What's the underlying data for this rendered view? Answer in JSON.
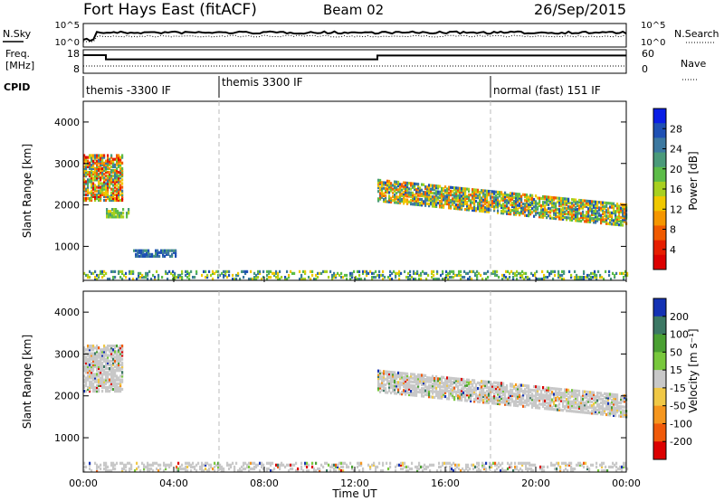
{
  "header": {
    "station": "Fort Hays East (fitACF)",
    "beam": "Beam 02",
    "date": "26/Sep/2015"
  },
  "summary": {
    "nsky_label": "N.Sky",
    "nsearch_label": "N.Search",
    "freq_label_1": "Freq.",
    "freq_label_2": "[MHz]",
    "nave_label": "Nave",
    "cpid_label": "CPID",
    "nsky_ticks": [
      "10^5",
      "10^0"
    ],
    "nsearch_ticks": [
      "10^5",
      "10^0"
    ],
    "freq_ticks": [
      "18",
      "8"
    ],
    "nave_ticks": [
      "60",
      "0"
    ],
    "cpid_segments": [
      {
        "start_h": 0,
        "end_h": 6,
        "label": "themis -3300 IF"
      },
      {
        "start_h": 6,
        "end_h": 18,
        "label": "themis 3300 IF"
      },
      {
        "start_h": 18,
        "end_h": 24,
        "label": "normal (fast) 151 IF"
      }
    ],
    "freq_steps": [
      {
        "start_h": 0,
        "end_h": 1,
        "mhz": 16.5
      },
      {
        "start_h": 1,
        "end_h": 13,
        "mhz": 14.2
      },
      {
        "start_h": 13,
        "end_h": 24,
        "mhz": 16.3
      }
    ]
  },
  "chart_data": [
    {
      "type": "heatmap",
      "quantity": "power",
      "xlabel": "",
      "ylabel": "Slant Range [km]",
      "xlim": [
        0,
        24
      ],
      "ylim": [
        180,
        4500
      ],
      "yticks": [
        "1000",
        "2000",
        "3000",
        "4000"
      ],
      "colorbar": {
        "label": "Power [dB]",
        "ticks": [
          "4",
          "8",
          "12",
          "16",
          "20",
          "24",
          "28"
        ],
        "colors": [
          "#0a1ee6",
          "#1e50b4",
          "#3c78a0",
          "#4a9a7a",
          "#5cbc48",
          "#a8d020",
          "#f0c800",
          "#f59600",
          "#f05a00",
          "#e61e00",
          "#dc0000"
        ]
      },
      "features": [
        {
          "name": "early patch",
          "t": [
            0.0,
            1.7
          ],
          "range_km": [
            2100,
            3200
          ],
          "power_db": [
            6,
            30
          ]
        },
        {
          "name": "early band",
          "t": [
            1.0,
            2.0
          ],
          "range_km": [
            1700,
            1900
          ],
          "power_db": [
            10,
            18
          ]
        },
        {
          "name": "0400 patch",
          "t": [
            2.2,
            4.1
          ],
          "range_km": [
            750,
            900
          ],
          "power_db": [
            4,
            10
          ]
        },
        {
          "name": "main band post 13UT",
          "t": [
            13.0,
            24.0
          ],
          "range_km": [
            1600,
            2600
          ],
          "power_db": [
            4,
            26
          ]
        },
        {
          "name": "ground scatter",
          "t": [
            0.0,
            24.0
          ],
          "range_km": [
            200,
            400
          ],
          "power_db": [
            4,
            20
          ]
        }
      ]
    },
    {
      "type": "heatmap",
      "quantity": "velocity",
      "xlabel": "Time UT",
      "ylabel": "Slant Range [km]",
      "xlim": [
        0,
        24
      ],
      "ylim": [
        180,
        4500
      ],
      "xticks": [
        "00:00",
        "04:00",
        "08:00",
        "12:00",
        "16:00",
        "20:00",
        "00:00"
      ],
      "yticks": [
        "1000",
        "2000",
        "3000",
        "4000"
      ],
      "colorbar": {
        "label": "Velocity [m s⁻¹]",
        "ticks": [
          "200",
          "100",
          "50",
          "15",
          "-15",
          "-50",
          "-100",
          "-200"
        ],
        "colors": [
          "#1432b4",
          "#3c7864",
          "#4aa032",
          "#78c83c",
          "#c8c8c8",
          "#f0c846",
          "#f5961e",
          "#f05a0a",
          "#dc0000"
        ]
      },
      "features": [
        {
          "name": "early patch",
          "t": [
            0.0,
            1.7
          ],
          "range_km": [
            2100,
            3200
          ],
          "velocity": [
            -15,
            15
          ]
        },
        {
          "name": "main band post 13UT",
          "t": [
            13.0,
            24.0
          ],
          "range_km": [
            1600,
            2600
          ],
          "velocity": [
            -15,
            15
          ]
        },
        {
          "name": "ground scatter",
          "t": [
            0.0,
            24.0
          ],
          "range_km": [
            200,
            400
          ],
          "velocity": [
            -50,
            50
          ]
        }
      ]
    }
  ]
}
